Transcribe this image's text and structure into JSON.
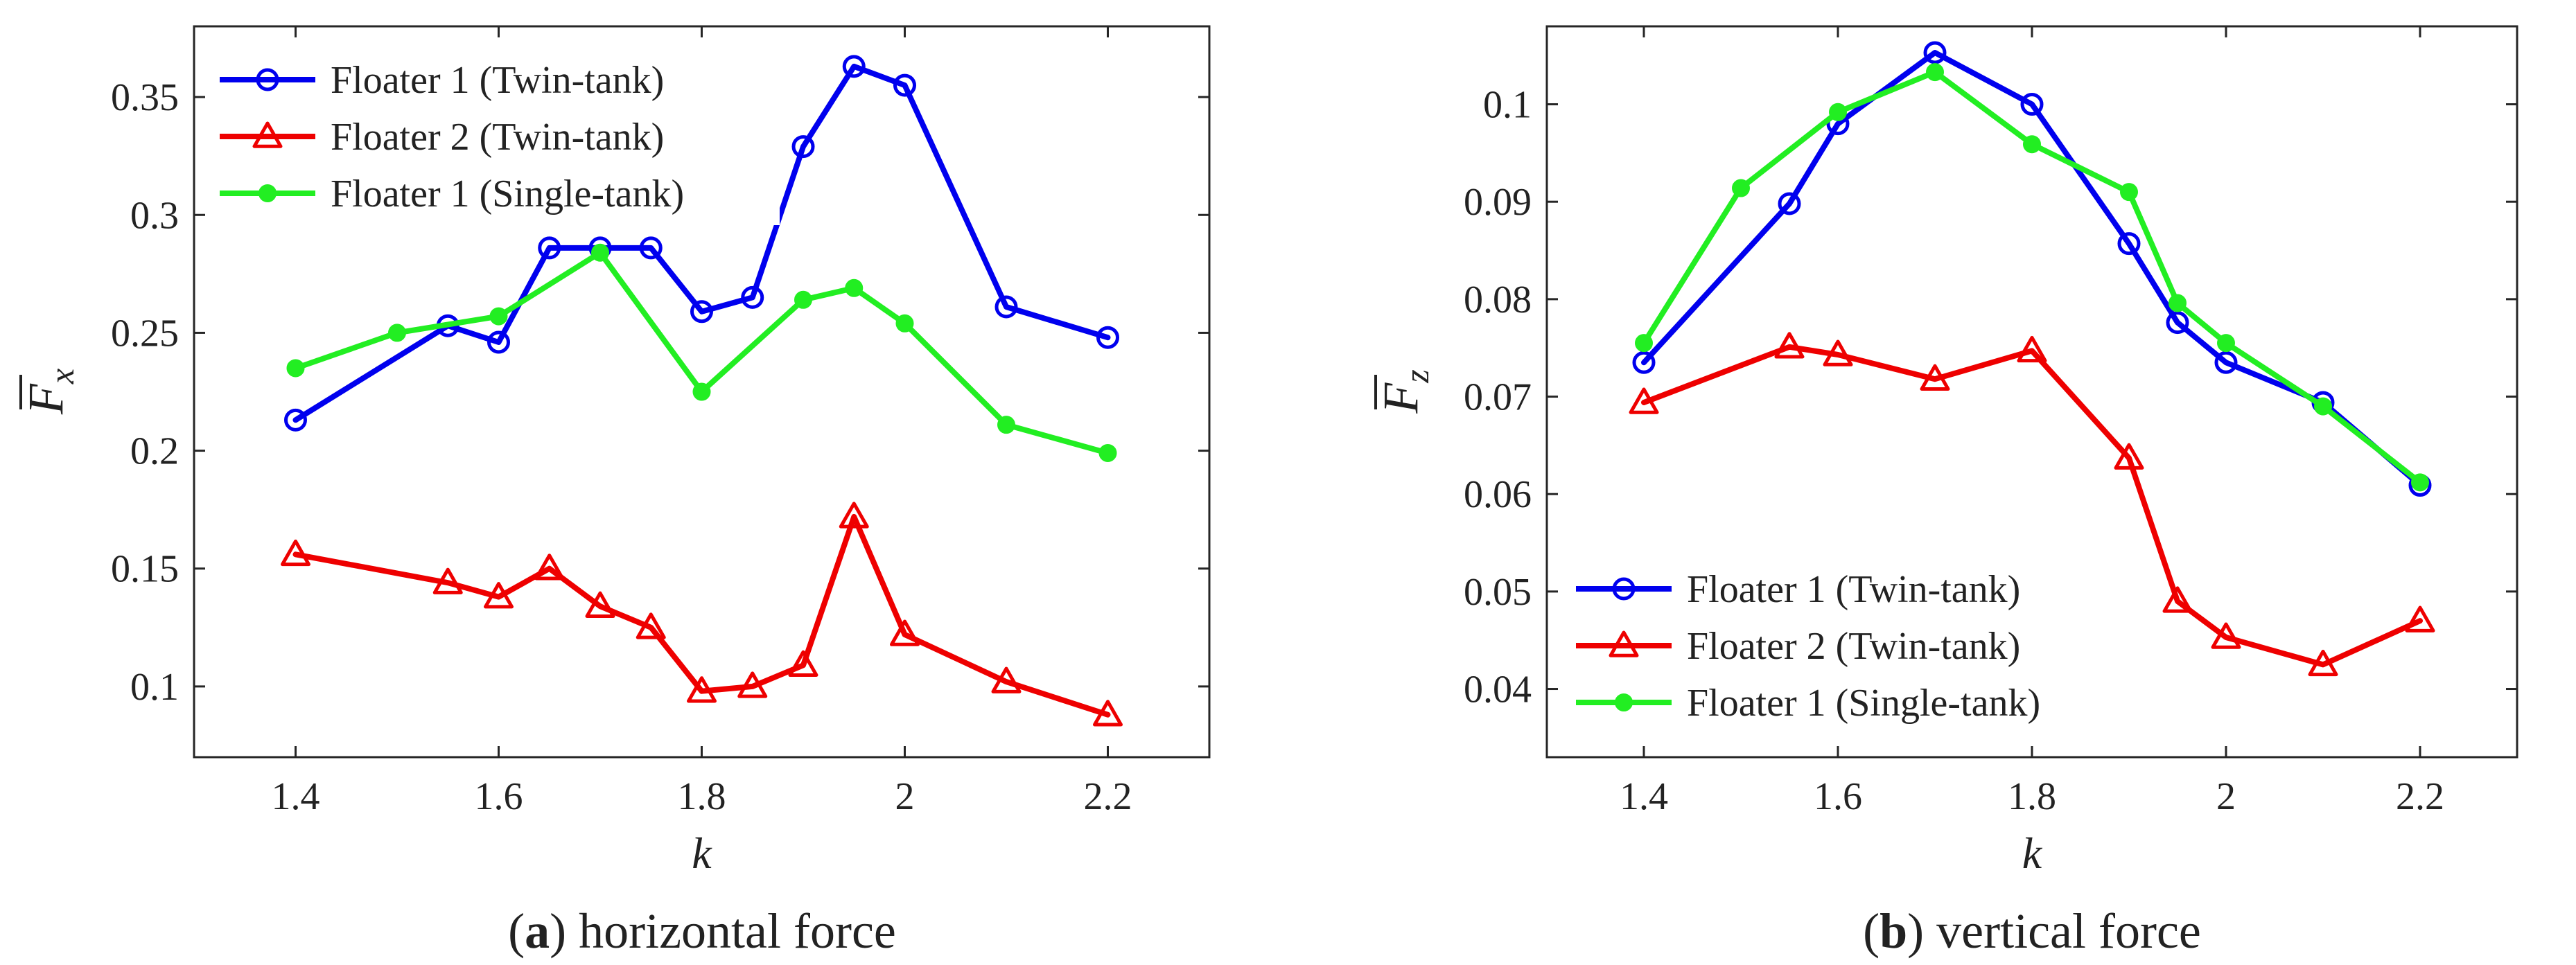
{
  "chart_data": [
    {
      "type": "line",
      "caption_letter": "a",
      "caption_text": "horizontal force",
      "xlabel": "k",
      "ylabel": "F",
      "ylabel_sub": "x",
      "xlim": [
        1.3,
        2.3
      ],
      "ylim": [
        0.07,
        0.38
      ],
      "xticks": [
        "1.4",
        "1.6",
        "1.8",
        "2",
        "2.2"
      ],
      "xtick_values": [
        1.4,
        1.6,
        1.8,
        2.0,
        2.2
      ],
      "yticks": [
        "0.1",
        "0.15",
        "0.2",
        "0.25",
        "0.3",
        "0.35"
      ],
      "ytick_values": [
        0.1,
        0.15,
        0.2,
        0.25,
        0.3,
        0.35
      ],
      "legend_position": "top-left",
      "series": [
        {
          "name": "Floater 1 (Twin-tank)",
          "color": "#0000ee",
          "marker": "circle",
          "x": [
            1.4,
            1.55,
            1.6,
            1.65,
            1.7,
            1.75,
            1.8,
            1.85,
            1.9,
            1.95,
            2.0,
            2.1,
            2.2
          ],
          "values": [
            0.213,
            0.253,
            0.246,
            0.286,
            0.286,
            0.286,
            0.259,
            0.265,
            0.329,
            0.363,
            0.355,
            0.261,
            0.248
          ]
        },
        {
          "name": "Floater 2 (Twin-tank)",
          "color": "#ee0000",
          "marker": "triangle",
          "x": [
            1.4,
            1.55,
            1.6,
            1.65,
            1.7,
            1.75,
            1.8,
            1.85,
            1.9,
            1.95,
            2.0,
            2.1,
            2.2
          ],
          "values": [
            0.156,
            0.144,
            0.138,
            0.15,
            0.134,
            0.125,
            0.098,
            0.1,
            0.109,
            0.172,
            0.122,
            0.102,
            0.088
          ]
        },
        {
          "name": "Floater 1 (Single-tank)",
          "color": "#22ee22",
          "marker": "dot",
          "x": [
            1.4,
            1.5,
            1.6,
            1.7,
            1.8,
            1.9,
            1.95,
            2.0,
            2.1,
            2.2
          ],
          "values": [
            0.235,
            0.25,
            0.257,
            0.284,
            0.225,
            0.264,
            0.269,
            0.254,
            0.211,
            0.199
          ]
        }
      ]
    },
    {
      "type": "line",
      "caption_letter": "b",
      "caption_text": "vertical force",
      "xlabel": "k",
      "ylabel": "F",
      "ylabel_sub": "z",
      "xlim": [
        1.3,
        2.3
      ],
      "ylim": [
        0.033,
        0.108
      ],
      "xticks": [
        "1.4",
        "1.6",
        "1.8",
        "2",
        "2.2"
      ],
      "xtick_values": [
        1.4,
        1.6,
        1.8,
        2.0,
        2.2
      ],
      "yticks": [
        "0.04",
        "0.05",
        "0.06",
        "0.07",
        "0.08",
        "0.09",
        "0.1"
      ],
      "ytick_values": [
        0.04,
        0.05,
        0.06,
        0.07,
        0.08,
        0.09,
        0.1
      ],
      "legend_position": "bottom-left",
      "series": [
        {
          "name": "Floater 1 (Twin-tank)",
          "color": "#0000ee",
          "marker": "circle",
          "x": [
            1.4,
            1.55,
            1.6,
            1.7,
            1.8,
            1.9,
            1.95,
            2.0,
            2.1,
            2.2
          ],
          "values": [
            0.0735,
            0.0898,
            0.098,
            0.1053,
            0.1,
            0.0857,
            0.0776,
            0.0735,
            0.0694,
            0.0609
          ]
        },
        {
          "name": "Floater 2 (Twin-tank)",
          "color": "#ee0000",
          "marker": "triangle",
          "x": [
            1.4,
            1.55,
            1.6,
            1.7,
            1.8,
            1.9,
            1.95,
            2.0,
            2.1,
            2.2
          ],
          "values": [
            0.0694,
            0.0751,
            0.0743,
            0.0718,
            0.0747,
            0.0637,
            0.049,
            0.0453,
            0.0425,
            0.047
          ]
        },
        {
          "name": "Floater 1 (Single-tank)",
          "color": "#22ee22",
          "marker": "dot",
          "x": [
            1.4,
            1.5,
            1.6,
            1.7,
            1.8,
            1.9,
            1.95,
            2.0,
            2.1,
            2.2
          ],
          "values": [
            0.0755,
            0.0914,
            0.0992,
            0.1033,
            0.0959,
            0.091,
            0.0796,
            0.0755,
            0.069,
            0.0612
          ]
        }
      ]
    }
  ]
}
